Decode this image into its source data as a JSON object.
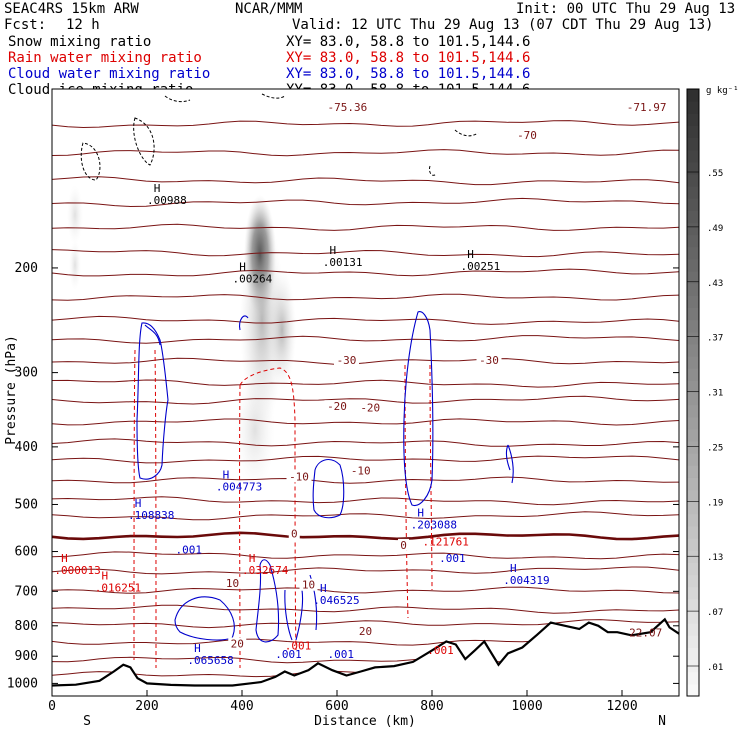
{
  "header": {
    "model": "SEAC4RS 15km ARW",
    "org": "NCAR/MMM",
    "init": "Init: 00 UTC Thu 29 Aug 13",
    "fcst_label": "Fcst:",
    "fcst_value": "12 h",
    "valid": "Valid: 12 UTC Thu 29 Aug 13 (07 CDT Thu 29 Aug 13)"
  },
  "legend": [
    {
      "name": "Snow mixing ratio",
      "xy": "XY=  83.0, 58.8 to 101.5,144.6",
      "color": "#000000"
    },
    {
      "name": "Rain water mixing ratio",
      "xy": "XY=  83.0, 58.8 to 101.5,144.6",
      "color": "#dd0000"
    },
    {
      "name": "Cloud water mixing ratio",
      "xy": "XY=  83.0, 58.8 to 101.5,144.6",
      "color": "#0000cc"
    },
    {
      "name": "Cloud ice mixing ratio",
      "xy": "XY=  83.0, 58.8 to 101.5,144.6",
      "color": "#000000"
    }
  ],
  "colorbar": {
    "unit": "g kg⁻¹",
    "labels": [
      ".01",
      ".07",
      ".13",
      ".19",
      ".25",
      ".31",
      ".37",
      ".43",
      ".49",
      ".55"
    ]
  },
  "colors": {
    "temperature": "#7a1414",
    "freezing": "#6a0a0a",
    "rain": "#dd0000",
    "cloud_water": "#0000cc",
    "terrain": "#000000"
  },
  "chart_data": {
    "type": "contour-cross-section",
    "xlabel": "Distance (km)",
    "ylabel": "Pressure (hPa)",
    "xlim": [
      0,
      1320
    ],
    "ylim": [
      1050,
      100
    ],
    "y_log": true,
    "x_ticks": [
      "0",
      "200",
      "400",
      "600",
      "800",
      "1000",
      "1200"
    ],
    "y_ticks": [
      "200",
      "300",
      "400",
      "500",
      "600",
      "700",
      "800",
      "900",
      "1000"
    ],
    "orientation": [
      "S",
      "N"
    ],
    "isotherms": [
      {
        "label": "-70",
        "x": 1000,
        "p": 120
      },
      {
        "label": "-30",
        "x": 620,
        "p": 287
      },
      {
        "label": "-30",
        "x": 920,
        "p": 287
      },
      {
        "label": "-20",
        "x": 600,
        "p": 343
      },
      {
        "label": "-20",
        "x": 670,
        "p": 345
      },
      {
        "label": "-10",
        "x": 520,
        "p": 450
      },
      {
        "label": "-10",
        "x": 650,
        "p": 440
      },
      {
        "label": "0",
        "x": 510,
        "p": 562
      },
      {
        "label": "0",
        "x": 740,
        "p": 587
      },
      {
        "label": "10",
        "x": 380,
        "p": 680
      },
      {
        "label": "10",
        "x": 540,
        "p": 685
      },
      {
        "label": "20",
        "x": 390,
        "p": 860
      },
      {
        "label": "20",
        "x": 660,
        "p": 820
      }
    ],
    "extremes": [
      {
        "label": "-75.36",
        "x": 580,
        "p": 108,
        "color": "temperature"
      },
      {
        "label": "-71.97",
        "x": 1210,
        "p": 108,
        "color": "temperature"
      },
      {
        "label": "22.07",
        "x": 1215,
        "p": 828,
        "color": "temperature"
      },
      {
        "label": ".00988",
        "x": 200,
        "p": 155,
        "color": "terrain",
        "h": true
      },
      {
        "label": ".00264",
        "x": 380,
        "p": 210,
        "color": "terrain",
        "h": true
      },
      {
        "label": ".00131",
        "x": 570,
        "p": 197,
        "color": "terrain",
        "h": true
      },
      {
        "label": ".00251",
        "x": 860,
        "p": 200,
        "color": "terrain",
        "h": true
      },
      {
        "label": ".004773",
        "x": 345,
        "p": 470,
        "color": "cloud_water",
        "h": true
      },
      {
        "label": ".108838",
        "x": 160,
        "p": 525,
        "color": "cloud_water",
        "h": true
      },
      {
        "label": ".203088",
        "x": 755,
        "p": 545,
        "color": "cloud_water",
        "h": true
      },
      {
        "label": ".046525",
        "x": 550,
        "p": 730,
        "color": "cloud_water",
        "h": true
      },
      {
        "label": ".004319",
        "x": 950,
        "p": 675,
        "color": "cloud_water",
        "h": true
      },
      {
        "label": ".065658",
        "x": 285,
        "p": 920,
        "color": "cloud_water",
        "h": true
      },
      {
        "label": ".001",
        "x": 260,
        "p": 600,
        "color": "cloud_water"
      },
      {
        "label": ".001",
        "x": 815,
        "p": 620,
        "color": "cloud_water"
      },
      {
        "label": ".001",
        "x": 470,
        "p": 900,
        "color": "cloud_water"
      },
      {
        "label": ".001",
        "x": 580,
        "p": 900,
        "color": "cloud_water"
      },
      {
        "label": ".000013",
        "x": 5,
        "p": 650,
        "color": "rain",
        "h": true
      },
      {
        "label": ".016251",
        "x": 90,
        "p": 695,
        "color": "rain",
        "h": true
      },
      {
        "label": ".032674",
        "x": 400,
        "p": 650,
        "color": "rain",
        "h": true
      },
      {
        "label": ".121761",
        "x": 780,
        "p": 582,
        "color": "rain"
      },
      {
        "label": ".001",
        "x": 490,
        "p": 870,
        "color": "rain"
      },
      {
        "label": ".001",
        "x": 790,
        "p": 885,
        "color": "rain"
      }
    ],
    "terrain_surface_hPa": [
      [
        0,
        1008
      ],
      [
        50,
        1005
      ],
      [
        100,
        990
      ],
      [
        130,
        955
      ],
      [
        150,
        930
      ],
      [
        165,
        940
      ],
      [
        180,
        980
      ],
      [
        200,
        1000
      ],
      [
        250,
        1006
      ],
      [
        300,
        1008
      ],
      [
        380,
        1008
      ],
      [
        440,
        995
      ],
      [
        470,
        975
      ],
      [
        490,
        955
      ],
      [
        510,
        970
      ],
      [
        540,
        950
      ],
      [
        560,
        925
      ],
      [
        590,
        950
      ],
      [
        620,
        970
      ],
      [
        650,
        955
      ],
      [
        680,
        940
      ],
      [
        720,
        935
      ],
      [
        760,
        920
      ],
      [
        800,
        880
      ],
      [
        830,
        850
      ],
      [
        850,
        860
      ],
      [
        870,
        910
      ],
      [
        890,
        880
      ],
      [
        910,
        850
      ],
      [
        940,
        930
      ],
      [
        960,
        890
      ],
      [
        990,
        870
      ],
      [
        1020,
        830
      ],
      [
        1050,
        790
      ],
      [
        1080,
        800
      ],
      [
        1110,
        810
      ],
      [
        1130,
        790
      ],
      [
        1150,
        800
      ],
      [
        1170,
        820
      ],
      [
        1190,
        820
      ],
      [
        1220,
        830
      ],
      [
        1260,
        820
      ],
      [
        1290,
        780
      ],
      [
        1300,
        805
      ],
      [
        1320,
        825
      ]
    ]
  }
}
